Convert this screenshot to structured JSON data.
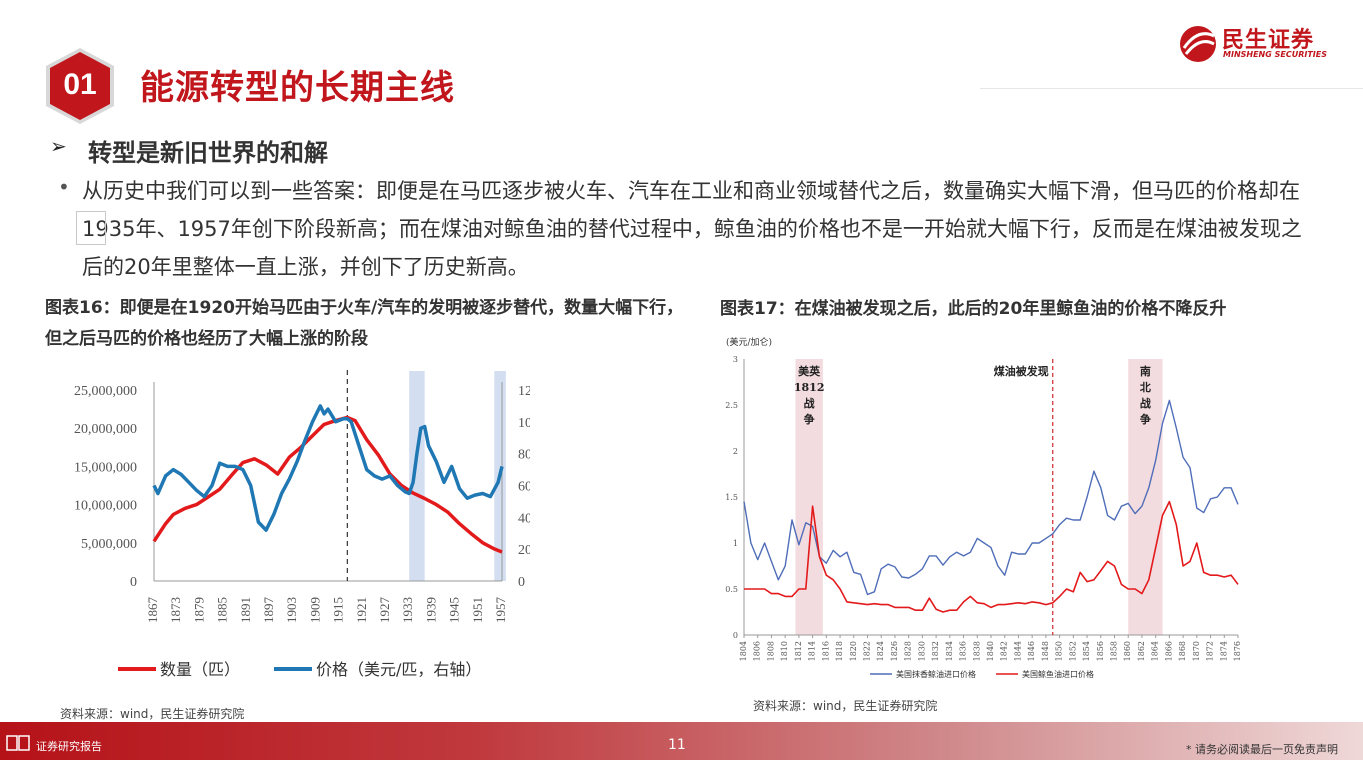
{
  "header": {
    "section_number": "01",
    "title": "能源转型的长期主线",
    "brand_cn": "民生证券",
    "brand_en": "MINSHENG SECURITIES"
  },
  "subtitle": "转型是新旧世界的和解",
  "paragraph": "从历史中我们可以到一些答案：即便是在马匹逐步被火车、汽车在工业和商业领域替代之后，数量确实大幅下滑，但马匹的价格却在1935年、1957年创下阶段新高；而在煤油对鲸鱼油的替代过程中，鲸鱼油的价格也不是一开始就大幅下行，反而是在煤油被发现之后的20年里整体一直上涨，并创下了历史新高。",
  "figure16": {
    "caption": "图表16：即便是在1920开始马匹由于火车/汽车的发明被逐步替代，数量大幅下行，但之后马匹的价格也经历了大幅上涨的阶段",
    "source": "资料来源：wind，民生证券研究院"
  },
  "figure17": {
    "caption": "图表17：在煤油被发现之后，此后的20年里鲸鱼油的价格不降反升",
    "source": "资料来源：wind，民生证券研究院"
  },
  "footer": {
    "label": "证券研究报告",
    "page_number": "11",
    "disclaimer": "* 请务必阅读最后一页免责声明"
  },
  "chart_data": [
    {
      "type": "line",
      "x_ticks": [
        "1867",
        "1873",
        "1879",
        "1885",
        "1891",
        "1897",
        "1903",
        "1909",
        "1915",
        "1921",
        "1927",
        "1933",
        "1939",
        "1945",
        "1951",
        "1957"
      ],
      "x_range": [
        1867,
        1957
      ],
      "left_axis": {
        "ylim": [
          0,
          25000000
        ],
        "ticks": [
          "0",
          "5,000,000",
          "10,000,000",
          "15,000,000",
          "20,000,000",
          "25,000,000"
        ]
      },
      "right_axis": {
        "ylim": [
          0,
          120
        ],
        "ticks": [
          "0",
          "20",
          "40",
          "60",
          "80",
          "100",
          "120"
        ]
      },
      "highlight_ranges": [
        [
          1933,
          1937
        ],
        [
          1955,
          1958
        ]
      ],
      "vline": 1917,
      "series": [
        {
          "name": "数量（匹）",
          "axis": "left",
          "color": "#e31a1c",
          "x": [
            1867,
            1870,
            1872,
            1875,
            1878,
            1881,
            1884,
            1887,
            1890,
            1893,
            1896,
            1899,
            1902,
            1905,
            1908,
            1911,
            1914,
            1917,
            1919,
            1922,
            1925,
            1928,
            1931,
            1934,
            1937,
            1940,
            1943,
            1946,
            1949,
            1952,
            1955,
            1957
          ],
          "values": [
            5200000,
            7500000,
            8700000,
            9500000,
            10000000,
            11000000,
            12000000,
            13800000,
            15500000,
            16000000,
            15200000,
            14000000,
            16200000,
            17500000,
            19000000,
            20500000,
            21000000,
            21400000,
            21000000,
            18500000,
            16500000,
            14000000,
            12500000,
            11500000,
            10800000,
            10000000,
            9000000,
            7500000,
            6200000,
            5000000,
            4200000,
            3800000
          ]
        },
        {
          "name": "价格（美元/匹，右轴）",
          "axis": "right",
          "color": "#1f78b4",
          "x": [
            1867,
            1868,
            1870,
            1872,
            1874,
            1876,
            1878,
            1880,
            1882,
            1884,
            1886,
            1888,
            1890,
            1892,
            1894,
            1896,
            1898,
            1900,
            1902,
            1904,
            1906,
            1908,
            1910,
            1911,
            1912,
            1914,
            1916,
            1917,
            1918,
            1920,
            1922,
            1924,
            1926,
            1928,
            1930,
            1932,
            1933,
            1934,
            1935,
            1936,
            1937,
            1938,
            1940,
            1942,
            1944,
            1946,
            1948,
            1950,
            1952,
            1954,
            1956,
            1957
          ],
          "values": [
            60,
            55,
            66,
            70,
            67,
            62,
            57,
            53,
            60,
            74,
            72,
            72,
            70,
            60,
            37,
            32,
            42,
            55,
            64,
            75,
            88,
            100,
            110,
            105,
            108,
            100,
            102,
            102,
            100,
            85,
            70,
            66,
            64,
            66,
            60,
            56,
            55,
            62,
            80,
            96,
            97,
            85,
            75,
            62,
            72,
            58,
            52,
            54,
            55,
            53,
            62,
            72
          ]
        }
      ]
    },
    {
      "type": "line",
      "y_label": "(美元/加仑)",
      "x_range": [
        1804,
        1876
      ],
      "x_ticks": [
        "1804",
        "1806",
        "1808",
        "1810",
        "1812",
        "1814",
        "1816",
        "1818",
        "1820",
        "1822",
        "1824",
        "1826",
        "1828",
        "1830",
        "1832",
        "1834",
        "1836",
        "1838",
        "1840",
        "1842",
        "1844",
        "1846",
        "1848",
        "1850",
        "1852",
        "1854",
        "1856",
        "1858",
        "1860",
        "1862",
        "1864",
        "1866",
        "1868",
        "1870",
        "1872",
        "1874",
        "1876"
      ],
      "ylim": [
        0,
        3
      ],
      "y_ticks": [
        "0",
        "0.5",
        "1",
        "1.5",
        "2",
        "2.5",
        "3"
      ],
      "annotations": [
        {
          "text_lines": [
            "美英",
            "1812",
            "战",
            "争"
          ],
          "range": [
            1811.5,
            1815.5
          ]
        },
        {
          "text_lines": [
            "煤油被发现"
          ],
          "at": 1849
        },
        {
          "text_lines": [
            "南",
            "北",
            "战",
            "争"
          ],
          "range": [
            1860,
            1865
          ]
        }
      ],
      "series": [
        {
          "name": "美国抹香鲸油进口价格",
          "color": "#4f6db8",
          "x": [
            1804,
            1805,
            1806,
            1807,
            1808,
            1809,
            1810,
            1811,
            1812,
            1813,
            1814,
            1815,
            1816,
            1817,
            1818,
            1819,
            1820,
            1821,
            1822,
            1823,
            1824,
            1825,
            1826,
            1827,
            1828,
            1829,
            1830,
            1831,
            1832,
            1833,
            1834,
            1835,
            1836,
            1837,
            1838,
            1839,
            1840,
            1841,
            1842,
            1843,
            1844,
            1845,
            1846,
            1847,
            1848,
            1849,
            1850,
            1851,
            1852,
            1853,
            1854,
            1855,
            1856,
            1857,
            1858,
            1859,
            1860,
            1861,
            1862,
            1863,
            1864,
            1865,
            1866,
            1867,
            1868,
            1869,
            1870,
            1871,
            1872,
            1873,
            1874,
            1875,
            1876
          ],
          "values": [
            1.45,
            1.0,
            0.82,
            1.0,
            0.8,
            0.6,
            0.75,
            1.25,
            0.98,
            1.22,
            1.18,
            0.85,
            0.78,
            0.92,
            0.85,
            0.9,
            0.68,
            0.66,
            0.44,
            0.47,
            0.72,
            0.77,
            0.74,
            0.63,
            0.62,
            0.66,
            0.72,
            0.86,
            0.86,
            0.76,
            0.85,
            0.9,
            0.86,
            0.9,
            1.05,
            1.0,
            0.95,
            0.75,
            0.65,
            0.9,
            0.88,
            0.88,
            1.0,
            1.0,
            1.05,
            1.1,
            1.2,
            1.27,
            1.25,
            1.25,
            1.5,
            1.78,
            1.6,
            1.3,
            1.25,
            1.4,
            1.43,
            1.32,
            1.4,
            1.6,
            1.9,
            2.3,
            2.55,
            2.25,
            1.93,
            1.82,
            1.38,
            1.33,
            1.48,
            1.5,
            1.6,
            1.6,
            1.42
          ]
        },
        {
          "name": "美国鲸鱼油进口价格",
          "color": "#e31a1c",
          "x": [
            1804,
            1805,
            1806,
            1807,
            1808,
            1809,
            1810,
            1811,
            1812,
            1813,
            1814,
            1815,
            1816,
            1817,
            1818,
            1819,
            1820,
            1821,
            1822,
            1823,
            1824,
            1825,
            1826,
            1827,
            1828,
            1829,
            1830,
            1831,
            1832,
            1833,
            1834,
            1835,
            1836,
            1837,
            1838,
            1839,
            1840,
            1841,
            1842,
            1843,
            1844,
            1845,
            1846,
            1847,
            1848,
            1849,
            1850,
            1851,
            1852,
            1853,
            1854,
            1855,
            1856,
            1857,
            1858,
            1859,
            1860,
            1861,
            1862,
            1863,
            1864,
            1865,
            1866,
            1867,
            1868,
            1869,
            1870,
            1871,
            1872,
            1873,
            1874,
            1875,
            1876
          ],
          "values": [
            0.5,
            0.5,
            0.5,
            0.5,
            0.45,
            0.45,
            0.42,
            0.42,
            0.5,
            0.5,
            1.4,
            0.85,
            0.65,
            0.6,
            0.5,
            0.36,
            0.35,
            0.34,
            0.33,
            0.34,
            0.33,
            0.33,
            0.3,
            0.3,
            0.3,
            0.27,
            0.27,
            0.4,
            0.28,
            0.25,
            0.27,
            0.27,
            0.36,
            0.42,
            0.35,
            0.34,
            0.3,
            0.33,
            0.33,
            0.34,
            0.35,
            0.34,
            0.36,
            0.35,
            0.33,
            0.35,
            0.42,
            0.5,
            0.47,
            0.68,
            0.58,
            0.6,
            0.7,
            0.8,
            0.75,
            0.55,
            0.5,
            0.5,
            0.45,
            0.6,
            0.95,
            1.3,
            1.45,
            1.2,
            0.75,
            0.8,
            1.0,
            0.68,
            0.65,
            0.65,
            0.63,
            0.65,
            0.55
          ]
        }
      ]
    }
  ]
}
